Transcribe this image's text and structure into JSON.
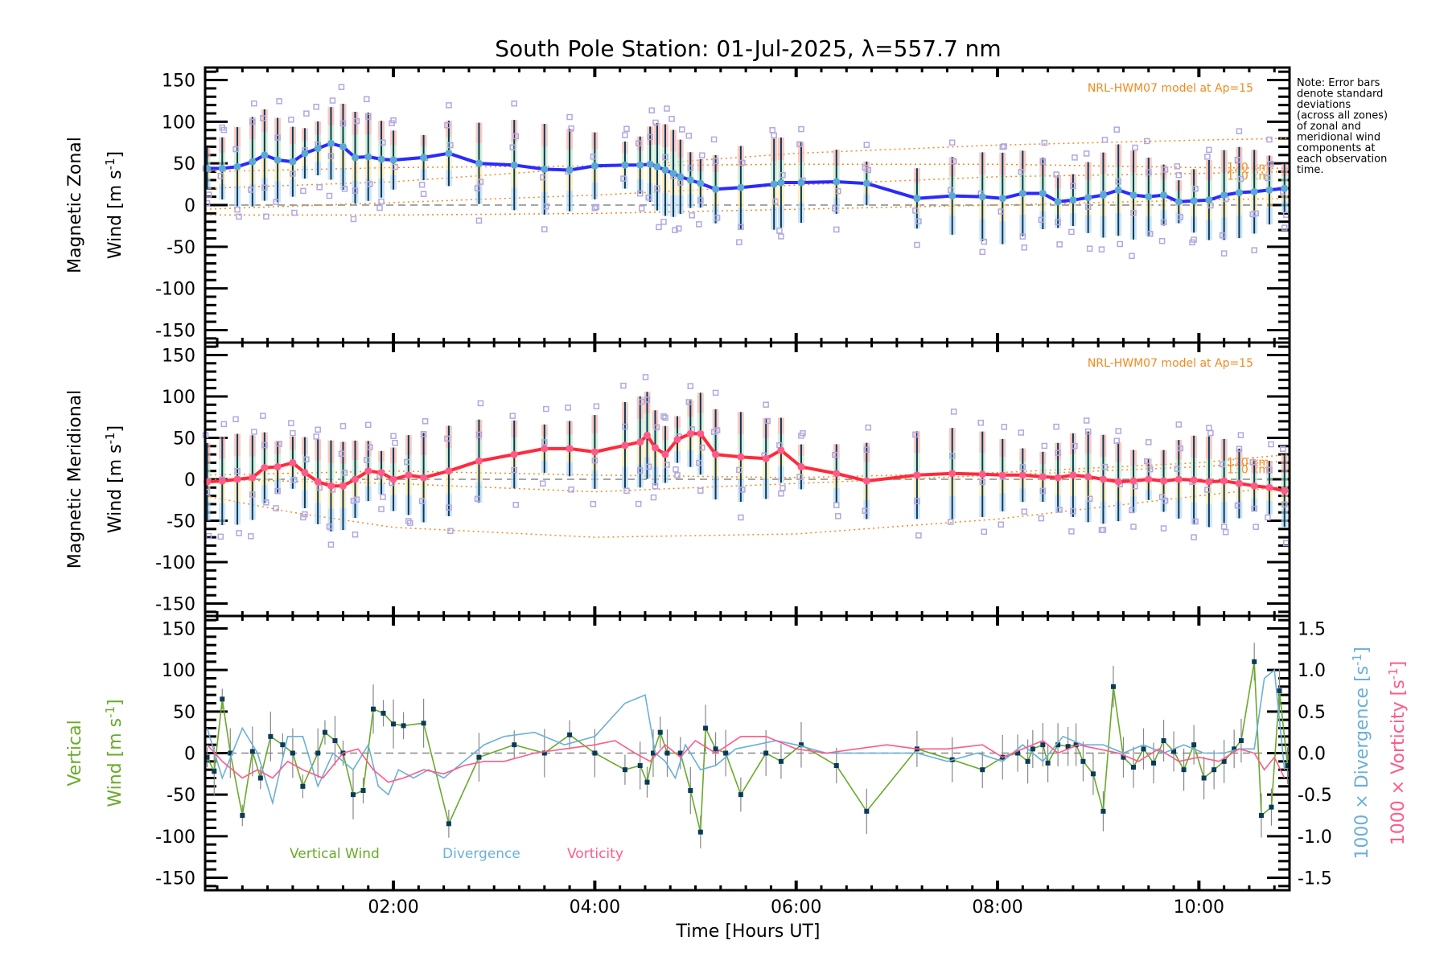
{
  "chart_data": {
    "type": "line",
    "title": "South Pole Station: 01-Jul-2025, λ=557.7 nm",
    "note": [
      "Note: Error bars",
      "denote standard",
      "deviations",
      "(across all zones)",
      "of zonal and",
      "meridional wind",
      "components at",
      "each observation",
      "time."
    ],
    "xlabel": "Time [Hours UT]",
    "xlim": [
      0.13,
      10.9
    ],
    "x_ticks": [
      {
        "value": 2,
        "label": "02:00"
      },
      {
        "value": 4,
        "label": "04:00"
      },
      {
        "value": 6,
        "label": "06:00"
      },
      {
        "value": 8,
        "label": "08:00"
      },
      {
        "value": 10,
        "label": "10:00"
      }
    ],
    "colors": {
      "zonal": "#2a2aff",
      "meridional": "#ff2a3a",
      "marker": "#5aa8d6",
      "errorbar": "#0a3a5a",
      "model": "#f08a1e",
      "scatter": "#b0a8e0",
      "vertical": "#6aaa2a",
      "divergence": "#6ab0d8",
      "vorticity": "#ff5a8a",
      "vertical_marker": "#0a3a5a",
      "vertical_err": "#888888",
      "zero_line": "#888888"
    },
    "panels": [
      {
        "id": "zonal",
        "ylabel_line1": "Magnetic Zonal",
        "ylabel_line2": "Wind [m s",
        "ylabel_sup": "-1",
        "ylabel_end": "]",
        "ylim": [
          -165,
          165
        ],
        "y_ticks": [
          150,
          100,
          50,
          0,
          -50,
          -100,
          -150
        ],
        "model_label": "NRL-HWM07 model at Ap=15",
        "model_alt_labels": [
          "120 km",
          "130 km"
        ],
        "series": {
          "name": "Magnetic Zonal Wind",
          "x": [
            0.15,
            0.3,
            0.45,
            0.6,
            0.72,
            0.85,
            1.0,
            1.12,
            1.25,
            1.38,
            1.5,
            1.62,
            1.75,
            1.88,
            2.0,
            2.3,
            2.55,
            2.85,
            3.2,
            3.5,
            3.75,
            4.0,
            4.3,
            4.45,
            4.55,
            4.62,
            4.7,
            4.78,
            4.85,
            4.95,
            5.05,
            5.2,
            5.45,
            5.78,
            5.85,
            6.05,
            6.4,
            6.7,
            7.2,
            7.55,
            7.85,
            8.05,
            8.25,
            8.45,
            8.6,
            8.75,
            8.9,
            9.05,
            9.2,
            9.35,
            9.5,
            9.65,
            9.8,
            9.95,
            10.1,
            10.25,
            10.4,
            10.55,
            10.7,
            10.85
          ],
          "y": [
            44,
            44,
            46,
            52,
            60,
            54,
            52,
            62,
            68,
            74,
            70,
            57,
            58,
            55,
            54,
            57,
            62,
            50,
            48,
            43,
            42,
            47,
            48,
            48,
            49,
            46,
            42,
            38,
            34,
            30,
            26,
            19,
            21,
            25,
            27,
            27,
            28,
            26,
            8,
            11,
            10,
            8,
            14,
            14,
            4,
            6,
            9,
            12,
            18,
            12,
            10,
            12,
            4,
            5,
            6,
            12,
            15,
            16,
            18,
            20
          ]
        },
        "model_curves": [
          {
            "name": "upper",
            "x": [
              0.13,
              2,
              4,
              6,
              8,
              10,
              10.9
            ],
            "y": [
              20,
              28,
              45,
              62,
              72,
              78,
              80
            ]
          },
          {
            "name": "120 km",
            "x": [
              0.13,
              2,
              4,
              6,
              8,
              10,
              10.9
            ],
            "y": [
              40,
              45,
              47,
              49,
              49,
              45,
              44
            ]
          },
          {
            "name": "130 km",
            "x": [
              0.13,
              2,
              4,
              6,
              8,
              10,
              10.9
            ],
            "y": [
              -5,
              3,
              12,
              24,
              34,
              38,
              40
            ]
          },
          {
            "name": "lower",
            "x": [
              0.13,
              2,
              4,
              6,
              8,
              10,
              10.9
            ],
            "y": [
              -12,
              -12,
              -10,
              -5,
              0,
              6,
              8
            ]
          }
        ]
      },
      {
        "id": "meridional",
        "ylabel_line1": "Magnetic Meridional",
        "ylabel_line2": "Wind [m s",
        "ylabel_sup": "-1",
        "ylabel_end": "]",
        "ylim": [
          -165,
          165
        ],
        "y_ticks": [
          150,
          100,
          50,
          0,
          -50,
          -100,
          -150
        ],
        "model_label": "NRL-HWM07 model at Ap=15",
        "model_alt_labels": [
          "120 km",
          "130 km"
        ],
        "series": {
          "name": "Magnetic Meridional Wind",
          "x": [
            0.15,
            0.3,
            0.45,
            0.6,
            0.72,
            0.85,
            1.0,
            1.12,
            1.25,
            1.38,
            1.5,
            1.62,
            1.75,
            1.88,
            2.0,
            2.15,
            2.3,
            2.55,
            2.85,
            3.2,
            3.5,
            3.75,
            4.0,
            4.3,
            4.45,
            4.52,
            4.6,
            4.7,
            4.82,
            4.95,
            5.05,
            5.2,
            5.45,
            5.7,
            5.85,
            6.05,
            6.4,
            6.7,
            7.2,
            7.55,
            7.85,
            8.05,
            8.25,
            8.45,
            8.6,
            8.75,
            8.9,
            9.05,
            9.2,
            9.35,
            9.5,
            9.65,
            9.8,
            9.95,
            10.1,
            10.25,
            10.4,
            10.55,
            10.7,
            10.85
          ],
          "y": [
            -3,
            -2,
            0,
            2,
            14,
            15,
            20,
            8,
            -3,
            -8,
            -8,
            0,
            10,
            8,
            0,
            5,
            2,
            10,
            22,
            30,
            37,
            37,
            33,
            41,
            45,
            53,
            38,
            30,
            48,
            55,
            55,
            30,
            27,
            25,
            35,
            15,
            7,
            -2,
            5,
            7,
            6,
            5,
            5,
            3,
            2,
            5,
            3,
            0,
            -3,
            -2,
            0,
            -2,
            0,
            -1,
            -3,
            -2,
            -5,
            -8,
            -10,
            -14
          ]
        },
        "model_curves": [
          {
            "name": "120 km",
            "x": [
              0.13,
              2,
              4,
              6,
              8,
              10,
              10.9
            ],
            "y": [
              5,
              10,
              5,
              2,
              8,
              20,
              30
            ]
          },
          {
            "name": "130 km",
            "x": [
              0.13,
              2,
              4,
              6,
              8,
              10,
              10.9
            ],
            "y": [
              0,
              -5,
              -15,
              -5,
              5,
              15,
              22
            ]
          },
          {
            "name": "lower",
            "x": [
              0.13,
              1,
              2,
              4,
              6,
              8,
              10,
              10.9
            ],
            "y": [
              -20,
              -40,
              -58,
              -70,
              -66,
              -48,
              -20,
              -8
            ]
          }
        ]
      },
      {
        "id": "vertical",
        "ylabel_line1": "Vertical",
        "ylabel_line2": "Wind [m s",
        "ylabel_sup": "-1",
        "ylabel_end": "]",
        "ylim": [
          -165,
          165
        ],
        "y_ticks": [
          150,
          100,
          50,
          0,
          -50,
          -100,
          -150
        ],
        "y2lim": [
          -1.65,
          1.65
        ],
        "y2_ticks": [
          "1.5",
          "1.0",
          "0.5",
          "0.0",
          "-0.5",
          "-1.0",
          "-1.5"
        ],
        "y2_label_div": "1000 × Divergence [s",
        "y2_label_vort": "1000 × Vorticity [s",
        "y2_sup": "-1",
        "y2_end": "]",
        "legend": [
          {
            "label": "Vertical Wind",
            "color_key": "vertical"
          },
          {
            "label": "Divergence",
            "color_key": "divergence"
          },
          {
            "label": "Vorticity",
            "color_key": "vorticity"
          }
        ],
        "series": [
          {
            "name": "Vertical Wind",
            "axis": "left",
            "x": [
              0.15,
              0.22,
              0.3,
              0.38,
              0.5,
              0.6,
              0.68,
              0.78,
              0.9,
              1.0,
              1.1,
              1.25,
              1.32,
              1.42,
              1.5,
              1.6,
              1.7,
              1.8,
              1.9,
              2.0,
              2.1,
              2.3,
              2.55,
              2.85,
              3.2,
              3.5,
              3.75,
              4.0,
              4.3,
              4.45,
              4.52,
              4.58,
              4.65,
              4.72,
              4.85,
              4.95,
              5.05,
              5.1,
              5.2,
              5.3,
              5.45,
              5.7,
              5.85,
              6.05,
              6.4,
              6.7,
              7.2,
              7.55,
              7.85,
              8.05,
              8.2,
              8.3,
              8.35,
              8.45,
              8.5,
              8.6,
              8.7,
              8.78,
              8.85,
              8.95,
              9.05,
              9.15,
              9.25,
              9.35,
              9.45,
              9.55,
              9.65,
              9.75,
              9.85,
              9.95,
              10.05,
              10.15,
              10.25,
              10.35,
              10.42,
              10.55,
              10.62,
              10.72,
              10.8,
              10.88
            ],
            "y": [
              -5,
              -22,
              65,
              0,
              -75,
              2,
              -30,
              20,
              10,
              0,
              -40,
              0,
              25,
              15,
              0,
              -50,
              -45,
              53,
              48,
              35,
              33,
              36,
              -85,
              -5,
              10,
              0,
              22,
              0,
              -20,
              -15,
              -35,
              0,
              25,
              0,
              0,
              -45,
              -95,
              30,
              5,
              0,
              -50,
              0,
              -10,
              10,
              -15,
              -70,
              5,
              -8,
              -20,
              -5,
              0,
              -10,
              5,
              10,
              -12,
              10,
              8,
              10,
              -10,
              -25,
              -70,
              80,
              -5,
              -17,
              5,
              -12,
              15,
              2,
              -20,
              10,
              -30,
              -20,
              -10,
              5,
              15,
              110,
              -75,
              -65,
              75,
              -15
            ]
          },
          {
            "name": "Divergence",
            "axis": "right",
            "x": [
              0.15,
              0.3,
              0.5,
              0.65,
              0.8,
              0.95,
              1.1,
              1.25,
              1.4,
              1.6,
              1.75,
              1.85,
              1.95,
              2.05,
              2.2,
              2.35,
              2.5,
              2.7,
              2.9,
              3.1,
              3.4,
              3.7,
              4.0,
              4.3,
              4.5,
              4.6,
              4.7,
              4.8,
              4.9,
              5.05,
              5.2,
              5.4,
              5.6,
              5.8,
              6.0,
              6.3,
              6.6,
              6.9,
              7.2,
              7.5,
              7.8,
              8.05,
              8.25,
              8.45,
              8.65,
              8.85,
              9.05,
              9.25,
              9.45,
              9.65,
              9.85,
              10.05,
              10.25,
              10.4,
              10.55,
              10.65,
              10.75,
              10.85
            ],
            "y": [
              0.3,
              -0.3,
              0.3,
              0.0,
              -0.6,
              0.2,
              0.2,
              -0.4,
              0.0,
              -0.2,
              0.1,
              -0.4,
              -0.5,
              -0.2,
              -0.3,
              -0.2,
              -0.3,
              -0.1,
              0.1,
              0.2,
              0.25,
              0.1,
              0.2,
              0.6,
              0.7,
              0.0,
              -0.1,
              -0.3,
              0.1,
              -0.2,
              -0.15,
              0.05,
              0.1,
              0.15,
              0.1,
              0.0,
              0.0,
              0.0,
              0.0,
              -0.1,
              0.0,
              -0.1,
              0.1,
              -0.1,
              0.2,
              0.1,
              0.1,
              0.0,
              0.1,
              0.0,
              0.1,
              0.0,
              0.0,
              0.05,
              0.05,
              0.9,
              1.0,
              -0.2
            ]
          },
          {
            "name": "Vorticity",
            "axis": "right",
            "x": [
              0.15,
              0.3,
              0.5,
              0.65,
              0.8,
              0.95,
              1.1,
              1.3,
              1.5,
              1.65,
              1.8,
              1.95,
              2.1,
              2.3,
              2.5,
              2.7,
              2.9,
              3.1,
              3.4,
              3.7,
              4.0,
              4.2,
              4.4,
              4.55,
              4.7,
              4.85,
              5.0,
              5.2,
              5.45,
              5.7,
              6.0,
              6.3,
              6.6,
              6.9,
              7.2,
              7.5,
              7.85,
              8.05,
              8.25,
              8.45,
              8.6,
              8.8,
              9.0,
              9.2,
              9.4,
              9.6,
              9.8,
              10.0,
              10.2,
              10.4,
              10.55,
              10.65,
              10.75,
              10.85
            ],
            "y": [
              0.1,
              -0.1,
              -0.3,
              -0.2,
              -0.3,
              -0.1,
              -0.2,
              -0.3,
              0.0,
              0.05,
              -0.2,
              -0.35,
              -0.3,
              -0.2,
              -0.25,
              -0.15,
              -0.1,
              -0.1,
              0.0,
              0.05,
              0.1,
              0.15,
              0.0,
              -0.1,
              0.1,
              -0.05,
              0.15,
              0.0,
              0.2,
              0.2,
              0.05,
              0.0,
              0.05,
              0.1,
              0.05,
              0.05,
              0.1,
              -0.05,
              0.05,
              0.15,
              0.0,
              0.1,
              0.05,
              0.0,
              -0.1,
              0.05,
              -0.1,
              -0.05,
              -0.1,
              0.05,
              0.0,
              -0.2,
              -0.05,
              -0.3
            ]
          }
        ]
      }
    ]
  }
}
